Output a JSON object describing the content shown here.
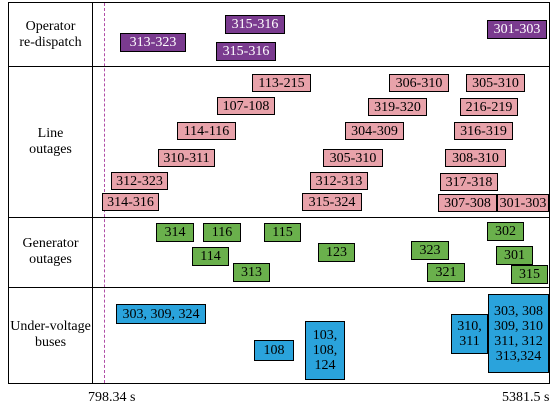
{
  "colors": {
    "redispatch": "#7a3b8f",
    "line_outage": "#e8a2aa",
    "generator_outage": "#6ab04c",
    "under_voltage": "#2aa3dc",
    "start_marker": "#b14ea7"
  },
  "rows": {
    "redispatch": {
      "label_lines": [
        "Operator",
        "re-dispatch"
      ]
    },
    "line_outages": {
      "label_lines": [
        "Line",
        "outages"
      ]
    },
    "generator_outages": {
      "label_lines": [
        "Generator",
        "outages"
      ]
    },
    "under_voltage": {
      "label_lines": [
        "Under-voltage",
        "buses"
      ]
    }
  },
  "events": {
    "redispatch": [
      {
        "lines": [
          "313-323"
        ]
      },
      {
        "lines": [
          "315-316"
        ]
      },
      {
        "lines": [
          "315-316"
        ]
      },
      {
        "lines": [
          "301-303"
        ]
      }
    ],
    "line_outages": [
      {
        "lines": [
          "113-215"
        ]
      },
      {
        "lines": [
          "107-108"
        ]
      },
      {
        "lines": [
          "114-116"
        ]
      },
      {
        "lines": [
          "310-311"
        ]
      },
      {
        "lines": [
          "312-323"
        ]
      },
      {
        "lines": [
          "314-316"
        ]
      },
      {
        "lines": [
          "306-310"
        ]
      },
      {
        "lines": [
          "319-320"
        ]
      },
      {
        "lines": [
          "304-309"
        ]
      },
      {
        "lines": [
          "305-310"
        ]
      },
      {
        "lines": [
          "312-313"
        ]
      },
      {
        "lines": [
          "315-324"
        ]
      },
      {
        "lines": [
          "305-310"
        ]
      },
      {
        "lines": [
          "216-219"
        ]
      },
      {
        "lines": [
          "316-319"
        ]
      },
      {
        "lines": [
          "308-310"
        ]
      },
      {
        "lines": [
          "317-318"
        ]
      },
      {
        "lines": [
          "307-308"
        ]
      },
      {
        "lines": [
          "301-303"
        ]
      }
    ],
    "generator_outages": [
      {
        "lines": [
          "314"
        ]
      },
      {
        "lines": [
          "116"
        ]
      },
      {
        "lines": [
          "115"
        ]
      },
      {
        "lines": [
          "114"
        ]
      },
      {
        "lines": [
          "313"
        ]
      },
      {
        "lines": [
          "123"
        ]
      },
      {
        "lines": [
          "323"
        ]
      },
      {
        "lines": [
          "321"
        ]
      },
      {
        "lines": [
          "302"
        ]
      },
      {
        "lines": [
          "301"
        ]
      },
      {
        "lines": [
          "315"
        ]
      }
    ],
    "under_voltage": [
      {
        "lines": [
          "303, 309, 324"
        ]
      },
      {
        "lines": [
          "108"
        ]
      },
      {
        "lines": [
          "103,",
          "108,",
          "124"
        ]
      },
      {
        "lines": [
          "310,",
          "311"
        ]
      },
      {
        "lines": [
          "303, 308",
          "309, 310",
          "311, 312",
          "313,324"
        ]
      }
    ]
  },
  "axis": {
    "start_label": "798.34 s",
    "end_label": "5381.5 s"
  }
}
